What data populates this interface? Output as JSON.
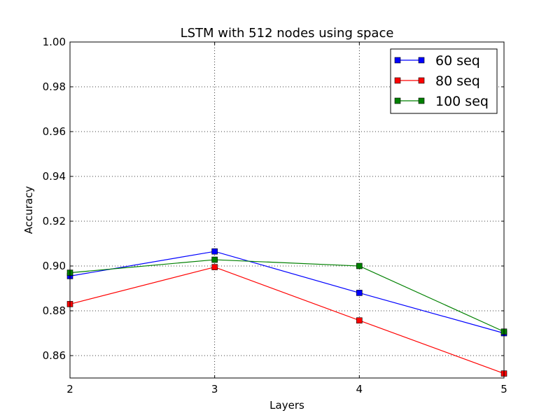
{
  "chart_data": {
    "type": "line",
    "title": "LSTM with 512 nodes using space",
    "xlabel": "Layers",
    "ylabel": "Accuracy",
    "x": [
      2,
      3,
      4,
      5
    ],
    "xlim": [
      2,
      5
    ],
    "ylim": [
      0.85,
      1.0
    ],
    "xticks": [
      "2",
      "3",
      "4",
      "5"
    ],
    "yticks": [
      "0.86",
      "0.88",
      "0.90",
      "0.92",
      "0.94",
      "0.96",
      "0.98",
      "1.00"
    ],
    "ytick_values": [
      0.86,
      0.88,
      0.9,
      0.92,
      0.94,
      0.96,
      0.98,
      1.0
    ],
    "grid": true,
    "legend_position": "top-right",
    "series": [
      {
        "name": "60 seq",
        "color": "#0000ff",
        "marker": "square",
        "values": [
          0.8955,
          0.9065,
          0.888,
          0.87
        ]
      },
      {
        "name": "80 seq",
        "color": "#ff0000",
        "marker": "square",
        "values": [
          0.883,
          0.8995,
          0.8757,
          0.852
        ]
      },
      {
        "name": "100 seq",
        "color": "#008000",
        "marker": "square",
        "values": [
          0.897,
          0.9028,
          0.9,
          0.8707
        ]
      }
    ]
  }
}
